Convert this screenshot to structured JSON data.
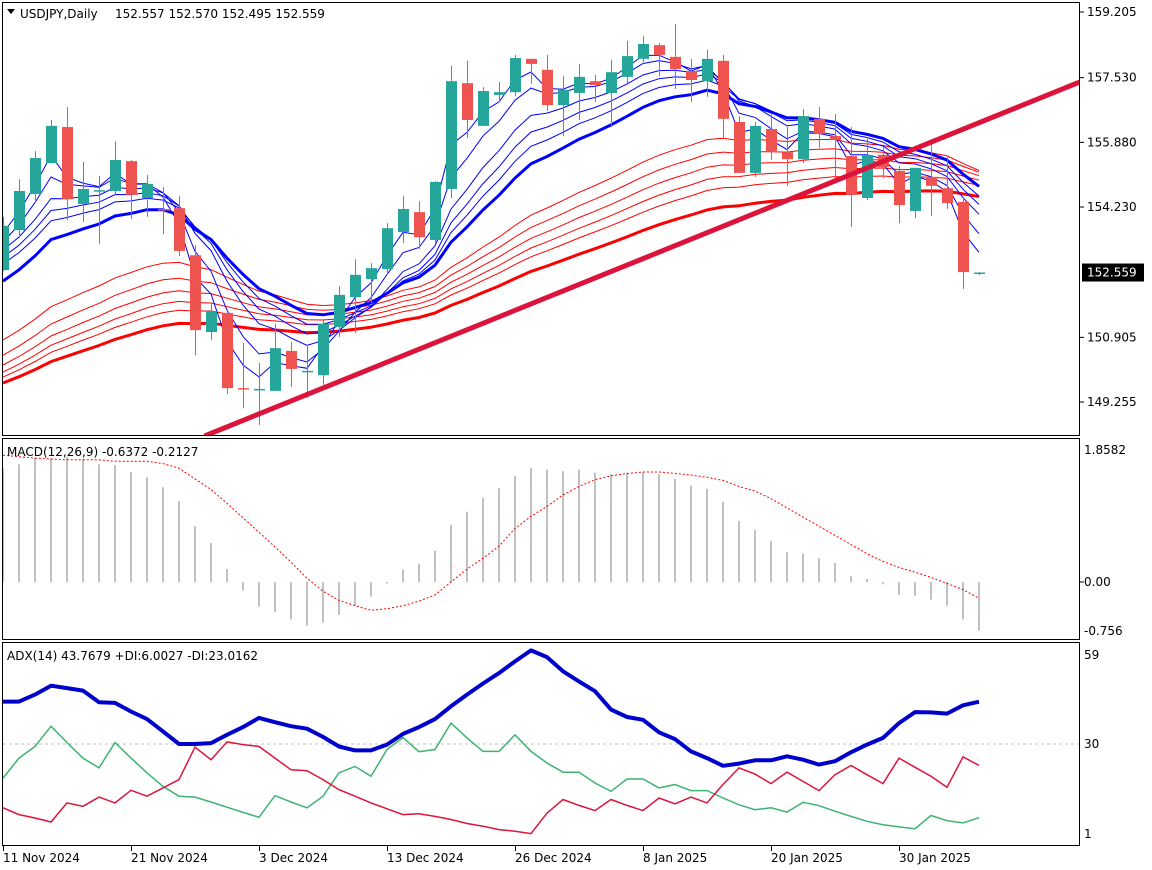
{
  "header": {
    "symbol_timeframe": "USDJPY,Daily",
    "ohlc": "152.557 152.570 152.495 152.559"
  },
  "colors": {
    "bull": "#26a69a",
    "bear": "#ef5350",
    "ema_short": "#0000ff",
    "ema_long": "#ff0000",
    "trendline": "#dc143c",
    "macd_hist": "#c0c0c0",
    "macd_signal": "#ff0000",
    "adx": "#0000cd",
    "plus_di": "#3cb371",
    "minus_di": "#dc143c"
  },
  "price_axis": {
    "labels": [
      "159.205",
      "157.530",
      "155.880",
      "154.230",
      "150.905",
      "149.255"
    ],
    "current": "152.559"
  },
  "macd": {
    "title": "MACD(12,26,9) -0.6372 -0.2127",
    "axis_labels": [
      "1.8582",
      "0.00",
      "-0.756"
    ]
  },
  "adx": {
    "title": "ADX(14) 43.7679 +DI:6.0027 -DI:23.0162",
    "axis_labels": [
      "59",
      "30",
      "1"
    ]
  },
  "date_axis": [
    {
      "label": "11 Nov 2024",
      "bar": 0
    },
    {
      "label": "21 Nov 2024",
      "bar": 8
    },
    {
      "label": "3 Dec 2024",
      "bar": 16
    },
    {
      "label": "13 Dec 2024",
      "bar": 24
    },
    {
      "label": "26 Dec 2024",
      "bar": 32
    },
    {
      "label": "8 Jan 2025",
      "bar": 40
    },
    {
      "label": "20 Jan 2025",
      "bar": 48
    },
    {
      "label": "30 Jan 2025",
      "bar": 56
    }
  ],
  "chart_data": {
    "type": "candlestick",
    "price_range": [
      148.4,
      159.5
    ],
    "candles_ohlc": [
      [
        152.62,
        153.98,
        152.6,
        153.75
      ],
      [
        153.64,
        154.94,
        153.44,
        154.64
      ],
      [
        154.56,
        155.66,
        154.33,
        155.48
      ],
      [
        155.35,
        156.45,
        155.35,
        156.3
      ],
      [
        156.27,
        156.78,
        153.9,
        154.43
      ],
      [
        154.31,
        155.38,
        153.85,
        154.69
      ],
      [
        154.64,
        155.02,
        153.29,
        154.66
      ],
      [
        154.64,
        155.91,
        154.54,
        155.43
      ],
      [
        155.4,
        155.43,
        153.92,
        154.54
      ],
      [
        154.46,
        155.05,
        153.98,
        154.82
      ],
      [
        154.18,
        154.74,
        153.54,
        154.15
      ],
      [
        154.2,
        154.51,
        152.98,
        153.11
      ],
      [
        153.0,
        153.26,
        150.45,
        151.09
      ],
      [
        151.04,
        151.78,
        150.84,
        151.58
      ],
      [
        151.53,
        151.53,
        149.46,
        149.61
      ],
      [
        149.61,
        150.76,
        149.1,
        149.59
      ],
      [
        149.56,
        150.25,
        148.67,
        149.59
      ],
      [
        149.54,
        151.25,
        149.54,
        150.63
      ],
      [
        150.56,
        150.79,
        149.64,
        150.1
      ],
      [
        150.02,
        150.71,
        149.36,
        150.05
      ],
      [
        149.94,
        151.37,
        149.69,
        151.25
      ],
      [
        151.17,
        152.21,
        150.91,
        151.99
      ],
      [
        151.93,
        152.9,
        151.02,
        152.5
      ],
      [
        152.39,
        152.8,
        151.78,
        152.67
      ],
      [
        152.65,
        153.82,
        152.5,
        153.69
      ],
      [
        153.59,
        154.51,
        153.31,
        154.18
      ],
      [
        154.1,
        154.38,
        153.16,
        153.46
      ],
      [
        153.39,
        154.89,
        153.31,
        154.87
      ],
      [
        154.69,
        157.83,
        154.46,
        157.44
      ],
      [
        157.39,
        157.96,
        155.99,
        156.45
      ],
      [
        156.3,
        157.29,
        156.3,
        157.19
      ],
      [
        157.09,
        157.42,
        156.91,
        157.16
      ],
      [
        157.16,
        158.11,
        157.06,
        158.03
      ],
      [
        158.01,
        158.01,
        157.37,
        157.88
      ],
      [
        157.73,
        158.11,
        156.68,
        156.83
      ],
      [
        156.83,
        157.57,
        156.04,
        157.22
      ],
      [
        157.14,
        157.88,
        156.45,
        157.55
      ],
      [
        157.44,
        157.6,
        156.91,
        157.34
      ],
      [
        157.14,
        157.98,
        156.27,
        157.67
      ],
      [
        157.55,
        158.47,
        157.39,
        158.08
      ],
      [
        158.01,
        158.59,
        157.93,
        158.39
      ],
      [
        158.36,
        158.41,
        157.57,
        158.11
      ],
      [
        158.06,
        158.9,
        157.24,
        157.75
      ],
      [
        157.7,
        158.01,
        156.91,
        157.47
      ],
      [
        157.44,
        158.24,
        157.04,
        158.01
      ],
      [
        157.96,
        158.11,
        155.99,
        156.48
      ],
      [
        156.4,
        156.55,
        155.1,
        155.1
      ],
      [
        155.1,
        156.4,
        155.0,
        156.3
      ],
      [
        156.22,
        156.6,
        155.43,
        155.66
      ],
      [
        155.63,
        156.27,
        154.77,
        155.45
      ],
      [
        155.45,
        156.73,
        155.35,
        156.55
      ],
      [
        156.48,
        156.78,
        155.74,
        156.09
      ],
      [
        156.04,
        156.6,
        154.92,
        155.94
      ],
      [
        155.53,
        156.27,
        153.72,
        154.54
      ],
      [
        154.46,
        156.02,
        154.41,
        155.56
      ],
      [
        155.56,
        155.76,
        154.97,
        155.25
      ],
      [
        155.15,
        155.28,
        153.82,
        154.28
      ],
      [
        154.13,
        155.23,
        153.95,
        155.23
      ],
      [
        155.0,
        155.91,
        154.0,
        154.77
      ],
      [
        154.71,
        155.53,
        154.18,
        154.33
      ],
      [
        154.36,
        154.46,
        152.14,
        152.57
      ],
      [
        152.557,
        152.57,
        152.495,
        152.559
      ]
    ],
    "gmma": {
      "short_periods": [
        3,
        5,
        8,
        10,
        12,
        15
      ],
      "short_seed": [
        153.57,
        153.34,
        153.13,
        152.95,
        152.78,
        152.34
      ],
      "long_periods": [
        30,
        35,
        40,
        45,
        50,
        60
      ],
      "long_seed": [
        150.84,
        150.45,
        150.2,
        150.02,
        149.89,
        149.74
      ]
    },
    "trendline": [
      [
        12.6,
        148.39
      ],
      [
        67.3,
        157.42
      ]
    ],
    "macd_range": [
      -0.756,
      1.8582
    ],
    "macd_hist": [
      1.49,
      1.54,
      1.63,
      1.62,
      1.64,
      1.61,
      1.54,
      1.53,
      1.44,
      1.37,
      1.24,
      1.06,
      0.73,
      0.51,
      0.17,
      -0.11,
      -0.32,
      -0.39,
      -0.49,
      -0.57,
      -0.53,
      -0.43,
      -0.31,
      -0.19,
      -0.02,
      0.16,
      0.24,
      0.41,
      0.75,
      0.92,
      1.1,
      1.23,
      1.39,
      1.49,
      1.47,
      1.45,
      1.47,
      1.43,
      1.41,
      1.43,
      1.44,
      1.41,
      1.35,
      1.26,
      1.22,
      1.05,
      0.8,
      0.68,
      0.54,
      0.39,
      0.37,
      0.31,
      0.25,
      0.08,
      0.04,
      -0.03,
      -0.17,
      -0.18,
      -0.23,
      -0.31,
      -0.49,
      -0.6372
    ],
    "macd_signal": [
      1.66,
      1.64,
      1.62,
      1.61,
      1.6,
      1.6,
      1.6,
      1.58,
      1.58,
      1.58,
      1.55,
      1.49,
      1.35,
      1.21,
      1.03,
      0.84,
      0.65,
      0.46,
      0.26,
      0.05,
      -0.12,
      -0.24,
      -0.31,
      -0.37,
      -0.35,
      -0.31,
      -0.25,
      -0.17,
      0.0,
      0.17,
      0.31,
      0.47,
      0.7,
      0.86,
      0.99,
      1.14,
      1.25,
      1.34,
      1.39,
      1.42,
      1.44,
      1.44,
      1.42,
      1.4,
      1.37,
      1.33,
      1.25,
      1.19,
      1.09,
      0.97,
      0.85,
      0.73,
      0.61,
      0.49,
      0.37,
      0.27,
      0.19,
      0.13,
      0.06,
      -0.02,
      -0.1,
      -0.2127
    ],
    "adx_level": 30,
    "adx": [
      43.8,
      43.8,
      46.1,
      49.0,
      48.2,
      47.4,
      43.6,
      43.4,
      40.6,
      38.1,
      34.1,
      30.0,
      30.0,
      30.3,
      33.0,
      35.5,
      38.5,
      37.1,
      35.8,
      35.0,
      32.3,
      29.2,
      27.9,
      27.9,
      29.8,
      33.3,
      35.5,
      38.1,
      42.3,
      46.1,
      49.7,
      53.1,
      56.9,
      60.5,
      58.3,
      53.7,
      50.4,
      47.2,
      41.2,
      38.8,
      37.9,
      33.8,
      31.6,
      27.6,
      25.4,
      22.9,
      23.6,
      24.7,
      24.7,
      26.0,
      24.9,
      23.3,
      24.4,
      27.3,
      29.8,
      32.0,
      36.8,
      40.4,
      40.3,
      39.9,
      42.6,
      43.77
    ],
    "plus_di": [
      18.9,
      25.4,
      29.2,
      35.8,
      30.5,
      25.4,
      22.2,
      30.5,
      25.4,
      20.6,
      16.2,
      13.0,
      12.7,
      11.1,
      9.4,
      7.7,
      6.1,
      13.2,
      11.1,
      9.2,
      13.0,
      20.6,
      22.7,
      19.5,
      28.2,
      32.1,
      27.5,
      28.2,
      36.8,
      32.0,
      27.6,
      27.6,
      33.0,
      27.6,
      23.8,
      20.8,
      20.8,
      17.3,
      14.6,
      18.6,
      18.6,
      15.7,
      16.8,
      14.8,
      14.8,
      12.4,
      10.2,
      8.6,
      9.2,
      7.8,
      11.0,
      9.9,
      8.1,
      6.4,
      4.8,
      3.7,
      3.0,
      2.4,
      6.7,
      5.0,
      4.3,
      6.0
    ],
    "minus_di": [
      9.2,
      7.0,
      5.9,
      4.6,
      10.8,
      9.7,
      12.7,
      10.8,
      14.9,
      13.0,
      15.7,
      18.4,
      29.0,
      24.9,
      30.7,
      29.8,
      29.2,
      25.4,
      21.6,
      21.3,
      18.4,
      15.1,
      13.0,
      10.8,
      8.9,
      7.0,
      7.3,
      6.4,
      5.4,
      4.1,
      3.2,
      2.1,
      1.6,
      0.8,
      7.5,
      11.9,
      10.0,
      8.3,
      11.9,
      10.0,
      8.3,
      12.4,
      10.5,
      12.7,
      10.8,
      16.8,
      22.2,
      20.2,
      17.1,
      20.8,
      17.8,
      14.8,
      20.0,
      23.0,
      20.0,
      17.1,
      25.4,
      22.4,
      19.5,
      15.9,
      25.8,
      23.02
    ]
  }
}
